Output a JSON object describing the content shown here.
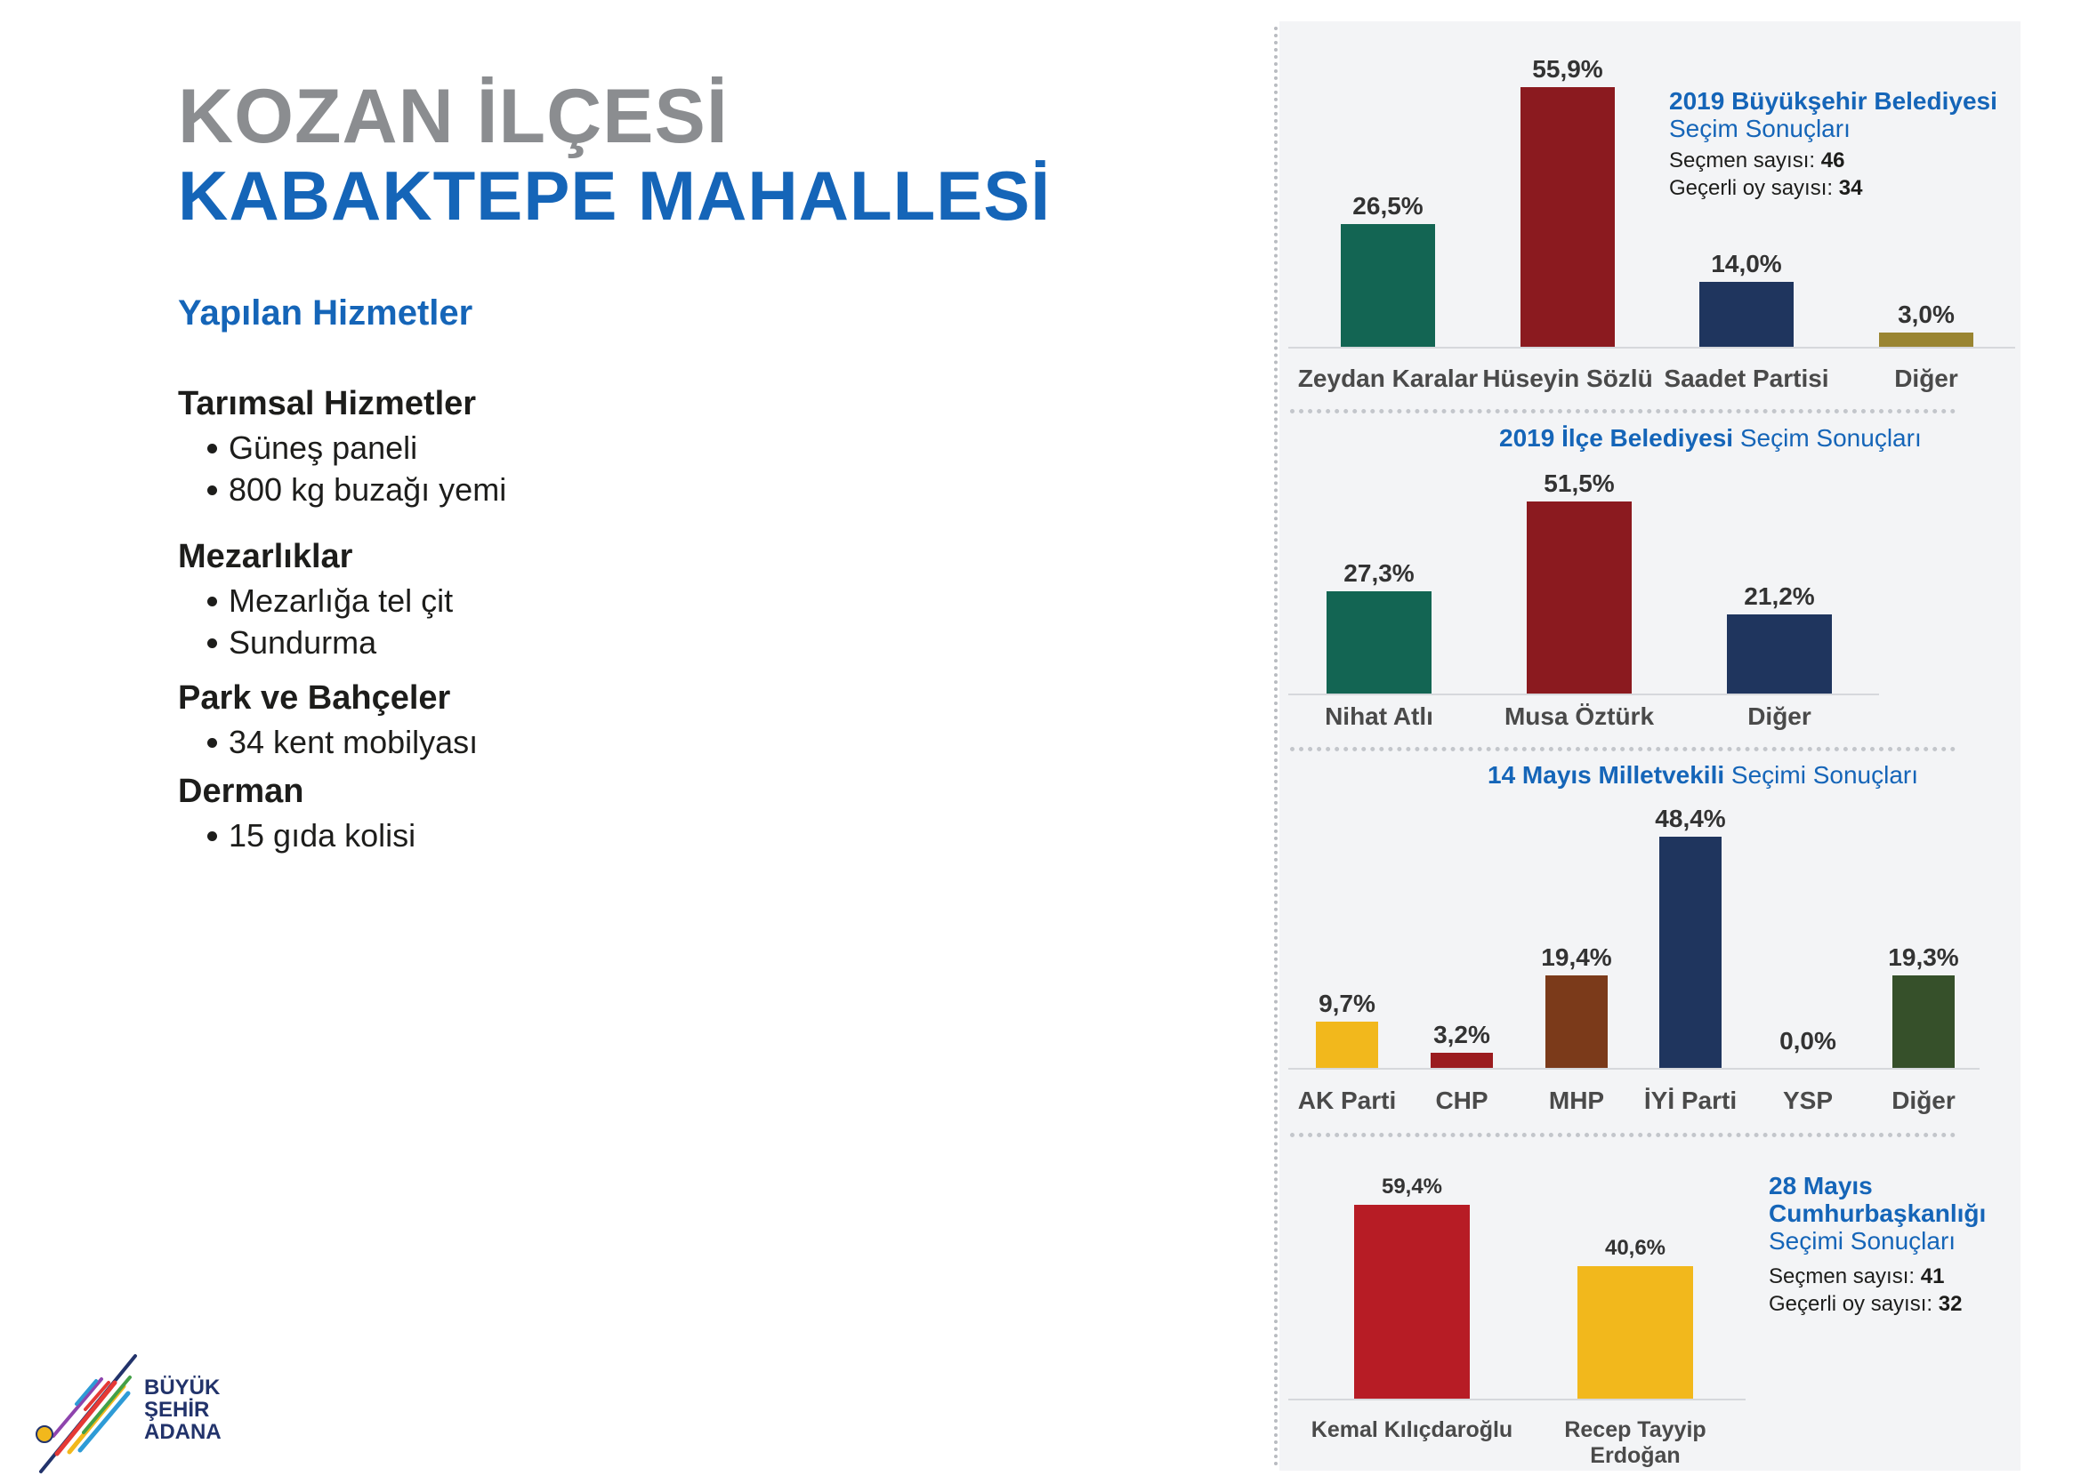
{
  "header": {
    "district": "KOZAN İLÇESİ",
    "neighborhood": "KABAKTEPE MAHALLESİ",
    "services_title": "Yapılan Hizmetler"
  },
  "services": [
    {
      "category": "Tarımsal Hizmetler",
      "items": [
        "Güneş paneli",
        "800 kg buzağı yemi"
      ]
    },
    {
      "category": "Mezarlıklar",
      "items": [
        "Mezarlığa tel çit",
        "Sundurma"
      ]
    },
    {
      "category": "Park ve Bahçeler",
      "items": [
        "34 kent mobilyası"
      ]
    },
    {
      "category": "Derman",
      "items": [
        "15 gıda kolisi"
      ]
    }
  ],
  "logo": {
    "line1": "BÜYÜK",
    "line2": "ŞEHİR",
    "line3": "ADANA"
  },
  "colors": {
    "title_gray": "#8b8d90",
    "title_blue": "#1565b8",
    "panel_bg": "#f3f4f6"
  },
  "chart_data": [
    {
      "type": "bar",
      "title_bold": "2019 Büyükşehir Belediyesi",
      "title_rest": "Seçim Sonuçları",
      "info": [
        {
          "label": "Seçmen sayısı:",
          "value": "46"
        },
        {
          "label": "Geçerli oy sayısı:",
          "value": "34"
        }
      ],
      "categories": [
        "Zeydan Karalar",
        "Hüseyin Sözlü",
        "Saadet Partisi",
        "Diğer"
      ],
      "values": [
        26.5,
        55.9,
        14.0,
        3.0
      ],
      "labels": [
        "26,5%",
        "55,9%",
        "14,0%",
        "3,0%"
      ],
      "colors": [
        "#136553",
        "#8b1a1f",
        "#1f355e",
        "#9a8532"
      ],
      "ylim": [
        0,
        55.9
      ]
    },
    {
      "type": "bar",
      "title_bold": "2019 İlçe Belediyesi",
      "title_rest": "Seçim Sonuçları",
      "categories": [
        "Nihat Atlı",
        "Musa Öztürk",
        "Diğer"
      ],
      "values": [
        27.3,
        51.5,
        21.2
      ],
      "labels": [
        "27,3%",
        "51,5%",
        "21,2%"
      ],
      "colors": [
        "#136553",
        "#8b1a1f",
        "#1f355e"
      ],
      "ylim": [
        0,
        51.5
      ]
    },
    {
      "type": "bar",
      "title_bold": "14 Mayıs Milletvekili",
      "title_rest": "Seçimi Sonuçları",
      "categories": [
        "AK Parti",
        "CHP",
        "MHP",
        "İYİ Parti",
        "YSP",
        "Diğer"
      ],
      "values": [
        9.7,
        3.2,
        19.4,
        48.4,
        0.0,
        19.3
      ],
      "labels": [
        "9,7%",
        "3,2%",
        "19,4%",
        "48,4%",
        "0,0%",
        "19,3%"
      ],
      "colors": [
        "#f2b81c",
        "#9b1c1f",
        "#7b3a1a",
        "#1f355e",
        "#888888",
        "#36502a"
      ],
      "ylim": [
        0,
        48.4
      ]
    },
    {
      "type": "bar",
      "title_lines": [
        "28 Mayıs",
        "Cumhurbaşkanlığı"
      ],
      "title_rest": "Seçimi Sonuçları",
      "info": [
        {
          "label": "Seçmen sayısı:",
          "value": "41"
        },
        {
          "label": "Geçerli oy sayısı:",
          "value": "32"
        }
      ],
      "categories": [
        "Kemal Kılıçdaroğlu",
        "Recep Tayyip Erdoğan"
      ],
      "values": [
        59.4,
        40.6
      ],
      "labels": [
        "59,4%",
        "40,6%"
      ],
      "colors": [
        "#b71c25",
        "#f2b81c"
      ],
      "ylim": [
        0,
        59.4
      ]
    }
  ]
}
